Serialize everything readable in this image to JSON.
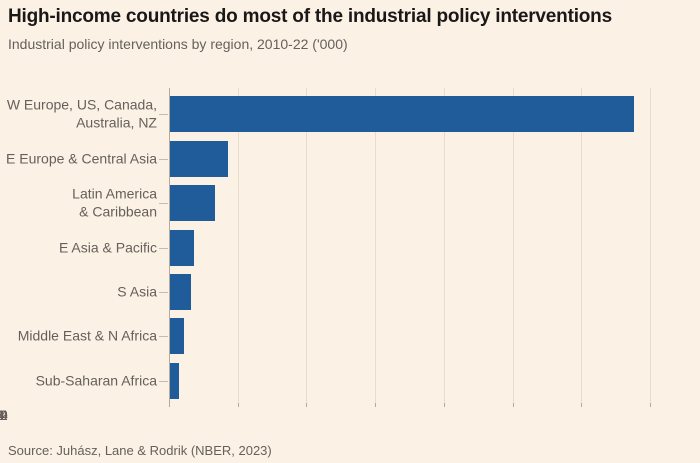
{
  "header": {
    "title": "High-income countries do most of the industrial policy interventions",
    "subtitle": "Industrial policy interventions by region, 2010-22 ('000)"
  },
  "footer": {
    "source": "Source: Juhász, Lane & Rodrik (NBER, 2023)"
  },
  "colors": {
    "background": "#FCF1E5",
    "bar": "#1F5C99",
    "title_text": "#191817",
    "muted_text": "#66605C",
    "gridline": "#E9DCCD",
    "axis_line": "#B3A99D",
    "category_tick": "#C5BBB0"
  },
  "chart_data": {
    "type": "bar",
    "orientation": "horizontal",
    "title": "High-income countries do most of the industrial policy interventions",
    "subtitle": "Industrial policy interventions by region, 2010-22 ('000)",
    "categories": [
      "W Europe, US, Canada,\nAustralia, NZ",
      "E Europe & Central Asia",
      "Latin America\n& Caribbean",
      "E Asia & Pacific",
      "S Asia",
      "Middle East & N Africa",
      "Sub-Saharan Africa"
    ],
    "values": [
      13.5,
      1.7,
      1.3,
      0.7,
      0.6,
      0.4,
      0.25
    ],
    "xlabel": "",
    "ylabel": "",
    "xlim": [
      0,
      14
    ],
    "xticks": [
      0,
      2,
      4,
      6,
      8,
      10,
      12,
      14
    ],
    "grid": "vertical",
    "legend": "none",
    "source": "Source: Juhász, Lane & Rodrik (NBER, 2023)"
  }
}
